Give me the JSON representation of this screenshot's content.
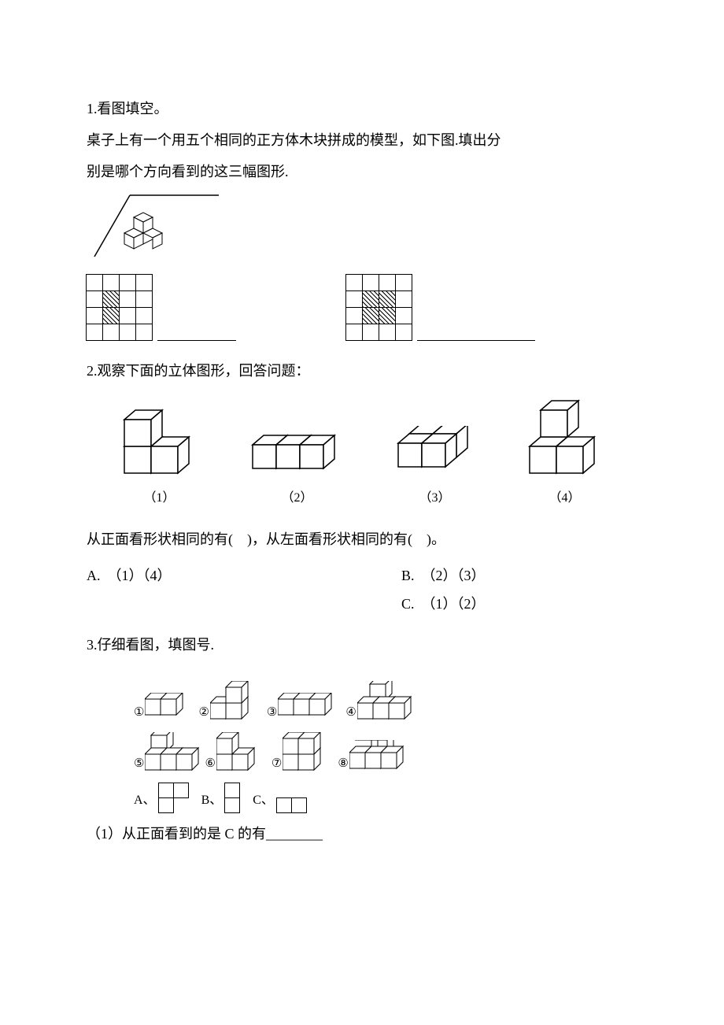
{
  "q1": {
    "title": "1.看图填空。",
    "line1": "桌子上有一个用五个相同的正方体木块拼成的模型，如下图.填出分",
    "line2": "别是哪个方向看到的这三幅图形.",
    "grid1_hatched": [
      [
        1,
        1
      ],
      [
        2,
        1
      ]
    ],
    "grid2_hatched": [
      [
        1,
        1
      ],
      [
        1,
        2
      ],
      [
        2,
        1
      ],
      [
        2,
        2
      ]
    ]
  },
  "q2": {
    "title": "2.观察下面的立体图形，回答问题：",
    "labels": [
      "（1）",
      "（2）",
      "（3）",
      "（4）"
    ],
    "question": "从正面看形状相同的有(　)，从左面看形状相同的有(　)。",
    "optA": "A.　（1）（4）",
    "optB": "B.　（2）（3）",
    "optC": "C.　（1）（2）"
  },
  "q3": {
    "title": "3.仔细看图，填图号.",
    "circled": [
      "①",
      "②",
      "③",
      "④",
      "⑤",
      "⑥",
      "⑦",
      "⑧"
    ],
    "optLabels": [
      "A、",
      "B、",
      "C、"
    ],
    "q3_1": "（1）从正面看到的是 C 的有________"
  },
  "colors": {
    "stroke": "#000000",
    "fillLight": "#ffffff",
    "fillTop": "#ffffff",
    "fillSide": "#f0f0f0"
  }
}
